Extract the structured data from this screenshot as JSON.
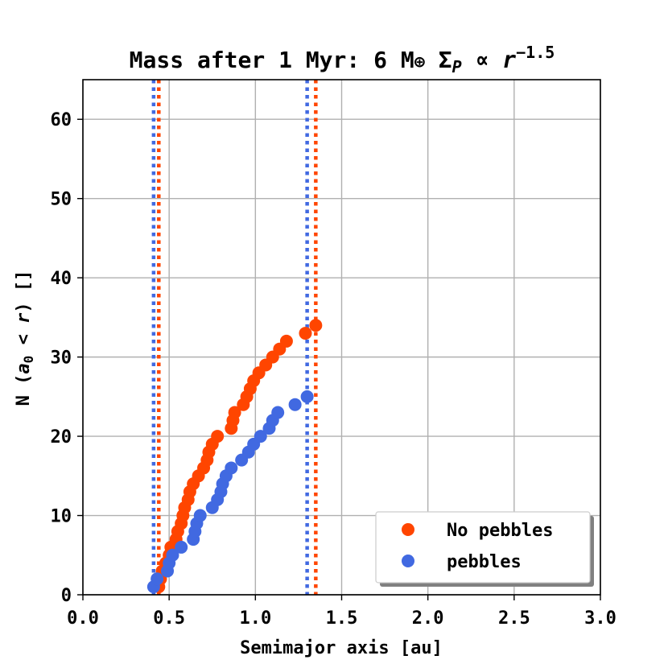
{
  "chart_data": {
    "type": "scatter",
    "title_parts": {
      "prefix": "Mass after 1 Myr: 6 M",
      "earth_symbol": "⊕",
      "sigma": " Σ",
      "sigma_sub": "P",
      "prop": "∝",
      "r": "r",
      "exponent": "−1.5"
    },
    "xlabel": "Semimajor axis [au]",
    "ylabel_parts": {
      "prefix": "N (",
      "a": "a",
      "sub": "0",
      "lt": " < ",
      "r": "r",
      "suffix": ") []"
    },
    "xlim": [
      0.0,
      3.0
    ],
    "ylim": [
      0,
      65
    ],
    "xticks": [
      0.0,
      0.5,
      1.0,
      1.5,
      2.0,
      2.5,
      3.0
    ],
    "xtick_labels": [
      "0.0",
      "0.5",
      "1.0",
      "1.5",
      "2.0",
      "2.5",
      "3.0"
    ],
    "yticks": [
      0,
      10,
      20,
      30,
      40,
      50,
      60
    ],
    "ytick_labels": [
      "0",
      "10",
      "20",
      "30",
      "40",
      "50",
      "60"
    ],
    "grid": true,
    "legend_position": "lower-right",
    "series": [
      {
        "name": "No pebbles",
        "color": "#ff4500",
        "points": [
          [
            0.44,
            1
          ],
          [
            0.45,
            2
          ],
          [
            0.46,
            3
          ],
          [
            0.48,
            4
          ],
          [
            0.5,
            5
          ],
          [
            0.51,
            6
          ],
          [
            0.54,
            7
          ],
          [
            0.55,
            8
          ],
          [
            0.57,
            9
          ],
          [
            0.58,
            10
          ],
          [
            0.59,
            11
          ],
          [
            0.61,
            12
          ],
          [
            0.62,
            13
          ],
          [
            0.64,
            14
          ],
          [
            0.67,
            15
          ],
          [
            0.7,
            16
          ],
          [
            0.72,
            17
          ],
          [
            0.73,
            18
          ],
          [
            0.75,
            19
          ],
          [
            0.78,
            20
          ],
          [
            0.86,
            21
          ],
          [
            0.87,
            22
          ],
          [
            0.88,
            23
          ],
          [
            0.93,
            24
          ],
          [
            0.95,
            25
          ],
          [
            0.97,
            26
          ],
          [
            0.99,
            27
          ],
          [
            1.02,
            28
          ],
          [
            1.06,
            29
          ],
          [
            1.1,
            30
          ],
          [
            1.14,
            31
          ],
          [
            1.18,
            32
          ],
          [
            1.29,
            33
          ],
          [
            1.35,
            34
          ]
        ],
        "vlines": [
          0.44,
          1.35
        ]
      },
      {
        "name": "pebbles",
        "color": "#4169e1",
        "points": [
          [
            0.41,
            1
          ],
          [
            0.43,
            2
          ],
          [
            0.49,
            3
          ],
          [
            0.5,
            4
          ],
          [
            0.52,
            5
          ],
          [
            0.57,
            6
          ],
          [
            0.64,
            7
          ],
          [
            0.65,
            8
          ],
          [
            0.66,
            9
          ],
          [
            0.68,
            10
          ],
          [
            0.75,
            11
          ],
          [
            0.78,
            12
          ],
          [
            0.8,
            13
          ],
          [
            0.81,
            14
          ],
          [
            0.83,
            15
          ],
          [
            0.86,
            16
          ],
          [
            0.92,
            17
          ],
          [
            0.96,
            18
          ],
          [
            0.99,
            19
          ],
          [
            1.03,
            20
          ],
          [
            1.08,
            21
          ],
          [
            1.1,
            22
          ],
          [
            1.13,
            23
          ],
          [
            1.23,
            24
          ],
          [
            1.3,
            25
          ]
        ],
        "vlines": [
          0.41,
          1.3
        ]
      }
    ]
  }
}
